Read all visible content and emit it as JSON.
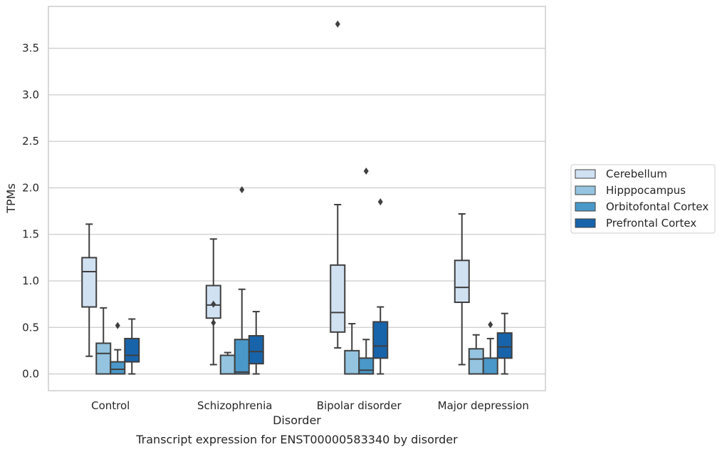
{
  "chart_data": {
    "type": "box",
    "title": "",
    "caption": "Transcript expression for ENST00000583340 by disorder",
    "xlabel": "Disorder",
    "ylabel": "TPMs",
    "ylim": [
      -0.18,
      3.95
    ],
    "yticks": [
      "0.0",
      "0.5",
      "1.0",
      "1.5",
      "2.0",
      "2.5",
      "3.0",
      "3.5"
    ],
    "grid": "horizontal",
    "legend_position": "right",
    "categories": [
      "Control",
      "Schizophrenia",
      "Bipolar disorder",
      "Major depression"
    ],
    "series": [
      {
        "name": "Cerebellum",
        "color": "#d0e1f2",
        "boxes": [
          {
            "whislo": 0.19,
            "q1": 0.72,
            "med": 1.1,
            "q3": 1.25,
            "whishi": 1.61,
            "fliers": []
          },
          {
            "whislo": 0.1,
            "q1": 0.6,
            "med": 0.74,
            "q3": 0.95,
            "whishi": 1.45,
            "fliers": [
              0.75,
              0.55
            ]
          },
          {
            "whislo": 0.28,
            "q1": 0.45,
            "med": 0.66,
            "q3": 1.17,
            "whishi": 1.82,
            "fliers": [
              3.76
            ]
          },
          {
            "whislo": 0.1,
            "q1": 0.77,
            "med": 0.93,
            "q3": 1.22,
            "whishi": 1.72,
            "fliers": []
          }
        ]
      },
      {
        "name": "Hipppocampus",
        "color": "#94c4df",
        "boxes": [
          {
            "whislo": 0.0,
            "q1": 0.0,
            "med": 0.22,
            "q3": 0.33,
            "whishi": 0.71,
            "fliers": []
          },
          {
            "whislo": 0.0,
            "q1": 0.0,
            "med": 0.0,
            "q3": 0.2,
            "whishi": 0.23,
            "fliers": []
          },
          {
            "whislo": 0.0,
            "q1": 0.0,
            "med": 0.0,
            "q3": 0.25,
            "whishi": 0.54,
            "fliers": []
          },
          {
            "whislo": 0.0,
            "q1": 0.0,
            "med": 0.16,
            "q3": 0.27,
            "whishi": 0.42,
            "fliers": []
          }
        ]
      },
      {
        "name": "Orbitofontal Cortex",
        "color": "#4a98c9",
        "boxes": [
          {
            "whislo": 0.0,
            "q1": 0.0,
            "med": 0.05,
            "q3": 0.13,
            "whishi": 0.26,
            "fliers": [
              0.52
            ]
          },
          {
            "whislo": 0.0,
            "q1": 0.0,
            "med": 0.02,
            "q3": 0.37,
            "whishi": 0.91,
            "fliers": [
              1.98
            ]
          },
          {
            "whislo": 0.0,
            "q1": 0.0,
            "med": 0.04,
            "q3": 0.17,
            "whishi": 0.37,
            "fliers": [
              2.18
            ]
          },
          {
            "whislo": 0.0,
            "q1": 0.0,
            "med": 0.0,
            "q3": 0.17,
            "whishi": 0.38,
            "fliers": [
              0.53
            ]
          }
        ]
      },
      {
        "name": "Prefrontal Cortex",
        "color": "#1764ab",
        "boxes": [
          {
            "whislo": 0.0,
            "q1": 0.13,
            "med": 0.2,
            "q3": 0.38,
            "whishi": 0.59,
            "fliers": []
          },
          {
            "whislo": 0.0,
            "q1": 0.11,
            "med": 0.24,
            "q3": 0.41,
            "whishi": 0.67,
            "fliers": []
          },
          {
            "whislo": 0.0,
            "q1": 0.17,
            "med": 0.3,
            "q3": 0.56,
            "whishi": 0.72,
            "fliers": [
              1.85
            ]
          },
          {
            "whislo": 0.0,
            "q1": 0.17,
            "med": 0.29,
            "q3": 0.44,
            "whishi": 0.65,
            "fliers": []
          }
        ]
      }
    ]
  }
}
